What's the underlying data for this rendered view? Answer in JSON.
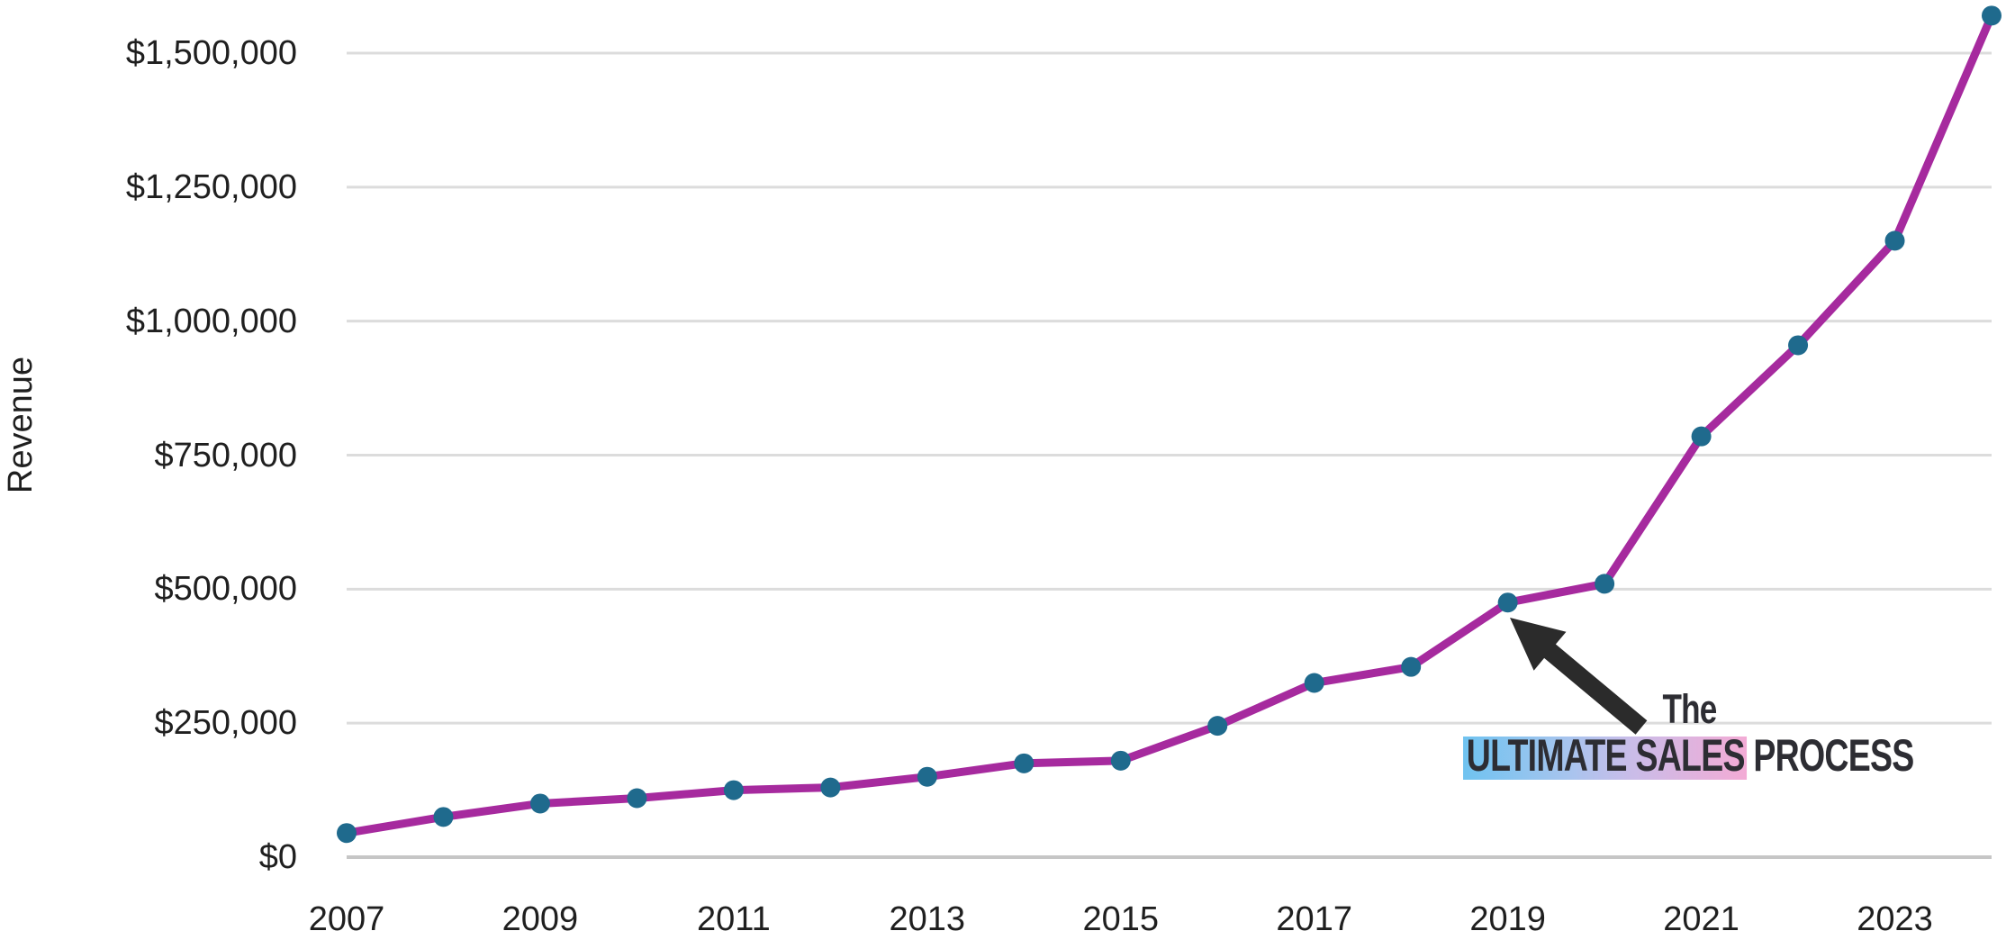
{
  "chart_data": {
    "type": "line",
    "title": "",
    "ylabel": "Revenue",
    "xlabel": "",
    "series_name": "Revenue",
    "x": [
      2007,
      2008,
      2009,
      2010,
      2011,
      2012,
      2013,
      2014,
      2015,
      2016,
      2017,
      2018,
      2019,
      2020,
      2021,
      2022,
      2023,
      2024
    ],
    "values": [
      45000,
      75000,
      100000,
      110000,
      125000,
      130000,
      150000,
      175000,
      180000,
      245000,
      325000,
      355000,
      475000,
      510000,
      785000,
      955000,
      1150000,
      1570000
    ],
    "ylim": [
      0,
      1600000
    ],
    "ytick_interval": 250000,
    "yticks": [
      {
        "value": 0,
        "label": "$0"
      },
      {
        "value": 250000,
        "label": "$250,000"
      },
      {
        "value": 500000,
        "label": "$500,000"
      },
      {
        "value": 750000,
        "label": "$750,000"
      },
      {
        "value": 1000000,
        "label": "$1,000,000"
      },
      {
        "value": 1250000,
        "label": "$1,250,000"
      },
      {
        "value": 1500000,
        "label": "$1,500,000"
      }
    ],
    "xticks": [
      {
        "value": 2007,
        "label": "2007"
      },
      {
        "value": 2009,
        "label": "2009"
      },
      {
        "value": 2011,
        "label": "2011"
      },
      {
        "value": 2013,
        "label": "2013"
      },
      {
        "value": 2015,
        "label": "2015"
      },
      {
        "value": 2017,
        "label": "2017"
      },
      {
        "value": 2019,
        "label": "2019"
      },
      {
        "value": 2021,
        "label": "2021"
      },
      {
        "value": 2023,
        "label": "2023"
      }
    ],
    "grid": "horizontal",
    "legend": "none",
    "line_color": "#a62a9e",
    "marker_color": "#1f6a8d",
    "gridline_color": "#dcdcdc",
    "axisline_color": "#c6c6c6",
    "tick_text_color": "#1f1f1f"
  },
  "annotation": {
    "line1": "The",
    "highlight": "ULTIMATE SALES",
    "rest": " PROCESS",
    "points_to_year": 2019,
    "text_color": "#2d2d33",
    "arrow_color": "#2b2b2b",
    "highlight_gradient": [
      "#6fc3f0",
      "#c8bde9",
      "#f3abd5"
    ]
  }
}
